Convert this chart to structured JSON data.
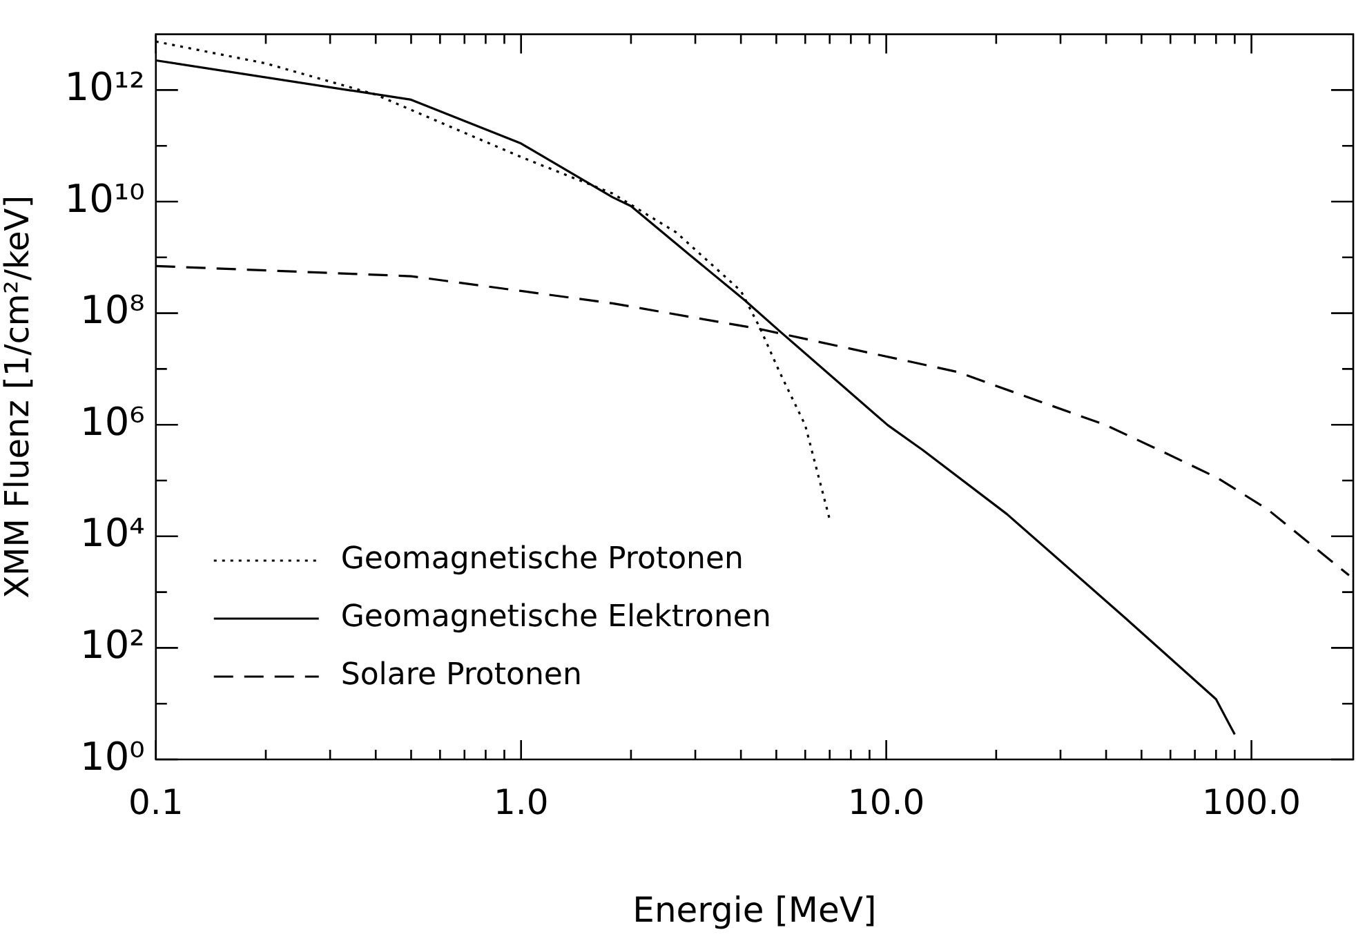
{
  "chart_data": {
    "type": "line",
    "xlabel": "Energie [MeV]",
    "ylabel": "XMM Fluenz [1/cm²/keV]",
    "log": "xy",
    "xlim": [
      0.1,
      190
    ],
    "ylim": [
      1,
      10000000000000.0
    ],
    "xticks": [
      {
        "value": 0.1,
        "label": "0.1"
      },
      {
        "value": 0.2,
        "label": null
      },
      {
        "value": 0.3,
        "label": null
      },
      {
        "value": 0.4,
        "label": null
      },
      {
        "value": 0.5,
        "label": null
      },
      {
        "value": 0.6,
        "label": null
      },
      {
        "value": 0.7,
        "label": null
      },
      {
        "value": 0.8,
        "label": null
      },
      {
        "value": 0.9,
        "label": null
      },
      {
        "value": 1,
        "label": "1.0"
      },
      {
        "value": 2,
        "label": null
      },
      {
        "value": 3,
        "label": null
      },
      {
        "value": 4,
        "label": null
      },
      {
        "value": 5,
        "label": null
      },
      {
        "value": 6,
        "label": null
      },
      {
        "value": 7,
        "label": null
      },
      {
        "value": 8,
        "label": null
      },
      {
        "value": 9,
        "label": null
      },
      {
        "value": 10,
        "label": "10.0"
      },
      {
        "value": 20,
        "label": null
      },
      {
        "value": 30,
        "label": null
      },
      {
        "value": 40,
        "label": null
      },
      {
        "value": 50,
        "label": null
      },
      {
        "value": 60,
        "label": null
      },
      {
        "value": 70,
        "label": null
      },
      {
        "value": 80,
        "label": null
      },
      {
        "value": 90,
        "label": null
      },
      {
        "value": 100,
        "label": "100.0"
      }
    ],
    "yticks": [
      {
        "value": 1,
        "label": "10⁰"
      },
      {
        "value": 10,
        "label": null
      },
      {
        "value": 100,
        "label": "10²"
      },
      {
        "value": 1000,
        "label": null
      },
      {
        "value": 10000,
        "label": "10⁴"
      },
      {
        "value": 100000,
        "label": null
      },
      {
        "value": 1000000,
        "label": "10⁶"
      },
      {
        "value": 10000000,
        "label": null
      },
      {
        "value": 100000000,
        "label": "10⁸"
      },
      {
        "value": 1000000000,
        "label": null
      },
      {
        "value": 10000000000,
        "label": "10¹⁰"
      },
      {
        "value": 100000000000,
        "label": null
      },
      {
        "value": 1000000000000,
        "label": "10¹²"
      }
    ],
    "grid": false,
    "legend": "bottom left",
    "marker": "none",
    "series": [
      {
        "name": "Geomagnetische Protonen",
        "color": "#000000",
        "line_style": "dotted",
        "x": [
          0.1,
          0.2,
          0.4,
          0.5,
          1,
          1.78,
          2.66,
          4,
          4.5,
          5.1,
          6,
          7
        ],
        "values": [
          7400000000000.0,
          3000000000000.0,
          830000000000.0,
          440000000000.0,
          63000000000.0,
          14000000000.0,
          2800000000.0,
          250000000.0,
          56000000.0,
          8900000.0,
          980000.0,
          20000.0
        ]
      },
      {
        "name": "Geomagnetische Elektronen",
        "color": "#000000",
        "line_style": "solid",
        "x": [
          0.1,
          0.5,
          1,
          1.78,
          2,
          2.9,
          4.1,
          5.1,
          10.1,
          12.6,
          21.4,
          45,
          80,
          90
        ],
        "values": [
          3400000000000.0,
          670000000000.0,
          110000000000.0,
          12000000000.0,
          8300000000.0,
          1100000000.0,
          170000000.0,
          48000000.0,
          980000.0,
          350000.0,
          25000.0,
          350,
          12,
          2.8
        ]
      },
      {
        "name": "Solare Protonen",
        "color": "#000000",
        "line_style": "dashed",
        "x": [
          0.1,
          0.5,
          1,
          1.78,
          4.5,
          15.6,
          40,
          56,
          81,
          111,
          185
        ],
        "values": [
          700000000.0,
          460000000.0,
          250000000.0,
          150000000.0,
          52000000.0,
          8900000.0,
          980000.0,
          350000.0,
          110000.0,
          30000.0,
          2000.0
        ]
      }
    ]
  }
}
